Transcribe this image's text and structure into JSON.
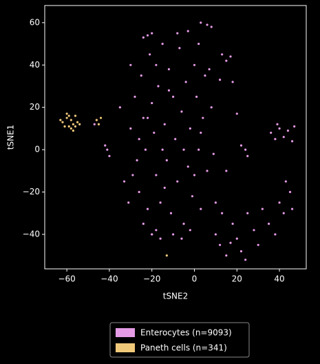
{
  "chart_data": {
    "type": "scatter",
    "xlabel": "tSNE2",
    "ylabel": "tSNE1",
    "xlim": [
      -70.4,
      52.6
    ],
    "ylim": [
      -56.3,
      68.1
    ],
    "xticks": [
      {
        "value": -60,
        "label": "−60"
      },
      {
        "value": -40,
        "label": "−40"
      },
      {
        "value": -20,
        "label": "−20"
      },
      0,
      20,
      40
    ],
    "yticks": [
      {
        "value": -40,
        "label": "−40"
      },
      {
        "value": -20,
        "label": "−20"
      },
      0,
      20,
      40,
      60
    ],
    "legend": "lower center",
    "series": [
      {
        "name": "Enterocytes (n=9093)",
        "color": "#e59be6",
        "x": [
          -30,
          -28,
          -27,
          -26,
          -25,
          -24,
          -23,
          -22,
          -21,
          -20,
          -19,
          -18,
          -17,
          -16,
          -15,
          -14,
          -13,
          -12,
          -11,
          -10,
          -9,
          -8,
          -7,
          -6,
          -5,
          -4,
          -3,
          -2,
          -1,
          0,
          1,
          2,
          3,
          4,
          5,
          -29,
          -26,
          -22,
          -18,
          -14,
          -10,
          -6,
          -2,
          -8,
          -3,
          2,
          6,
          8,
          -33,
          -31,
          -24,
          -20,
          -12,
          -15,
          -5,
          0,
          3,
          7,
          9,
          10,
          12,
          15,
          18,
          20,
          22,
          25,
          28,
          30,
          32,
          35,
          38,
          40,
          42,
          45,
          46,
          43,
          13,
          24,
          17,
          36,
          38,
          40,
          42,
          44,
          46,
          39,
          47,
          -22,
          -24,
          -20,
          -18,
          -20,
          -16,
          -41,
          -40,
          -42,
          3,
          6,
          8,
          13,
          15,
          17,
          20,
          22,
          24,
          12,
          18,
          25,
          10,
          15,
          -35,
          -47,
          -30
        ],
        "values": [
          10,
          25,
          -5,
          -20,
          35,
          15,
          0,
          -28,
          45,
          22,
          8,
          -12,
          30,
          -25,
          50,
          12,
          -5,
          38,
          -30,
          25,
          5,
          -15,
          48,
          18,
          -35,
          32,
          -8,
          10,
          -22,
          40,
          25,
          0,
          -28,
          15,
          35,
          -12,
          5,
          15,
          40,
          -18,
          -40,
          -42,
          -38,
          55,
          56,
          50,
          -10,
          20,
          -15,
          -25,
          -35,
          -40,
          28,
          0,
          0,
          -12,
          8,
          38,
          -2,
          -40,
          -45,
          -50,
          -35,
          -42,
          -48,
          -30,
          -38,
          -45,
          -28,
          -35,
          -40,
          -25,
          -30,
          -20,
          -28,
          -15,
          -30,
          -52,
          -44,
          8,
          5,
          10,
          6,
          9,
          4,
          12,
          11,
          54,
          53,
          55,
          -38,
          -40,
          -42,
          0,
          -3,
          2,
          60,
          59,
          58,
          45,
          42,
          44,
          17,
          2,
          0,
          33,
          32,
          -3,
          -25,
          -10,
          20,
          12,
          40
        ]
      },
      {
        "name": "Paneth cells (n=341)",
        "color": "#f0c87a",
        "x": [
          -62,
          -60,
          -59,
          -58,
          -57,
          -56,
          -61,
          -58,
          -55,
          -60,
          -57,
          -63,
          -56,
          -59,
          -54,
          -46,
          -45,
          -44,
          -13
        ],
        "values": [
          13,
          15,
          11,
          14,
          12,
          16,
          11,
          10,
          13,
          17,
          9,
          14,
          11,
          16,
          12,
          14,
          12,
          15,
          -50
        ]
      }
    ]
  }
}
